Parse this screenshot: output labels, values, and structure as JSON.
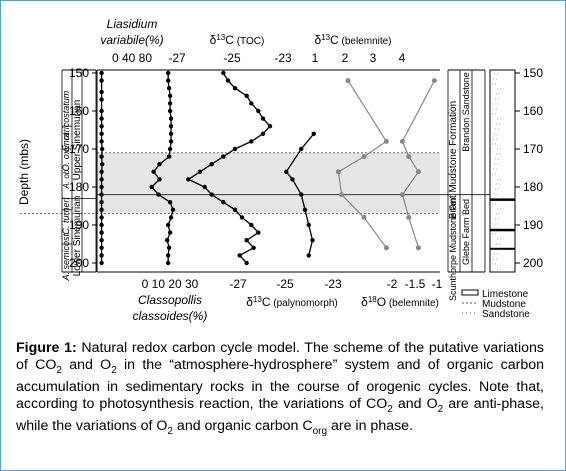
{
  "chart_data": [
    {
      "type": "line",
      "panel": "liasidium",
      "title": "Liasidium variabile(%)",
      "title_lines": [
        "Liasidium",
        "variabile(%)"
      ],
      "xlim": [
        0,
        100
      ],
      "xticks": [
        0,
        40,
        80
      ],
      "xticks_text": "0  40 80",
      "ylim": [
        150,
        200
      ],
      "y": [
        150,
        152,
        155,
        157,
        160,
        162,
        164,
        166,
        168,
        170,
        172,
        174,
        176,
        178,
        180,
        182,
        184,
        186,
        188,
        190,
        192,
        194,
        196,
        198,
        200
      ],
      "x": [
        1,
        1,
        1,
        1,
        1,
        1,
        1,
        1,
        1,
        2,
        1,
        2,
        1,
        1,
        1,
        1,
        1,
        1,
        1,
        1,
        1,
        1,
        1,
        1,
        1
      ]
    },
    {
      "type": "line",
      "panel": "classopollis",
      "title": "Classopollis classoides(%)",
      "title_lines": [
        "Classopollis",
        "classoides(%)"
      ],
      "xlim": [
        0,
        30
      ],
      "xticks": [
        0,
        10,
        20,
        30
      ],
      "xticks_text": "0 10 20 30",
      "ylim": [
        150,
        200
      ],
      "y": [
        150,
        152,
        154,
        156,
        158,
        160,
        162,
        164,
        166,
        168,
        170,
        172,
        174,
        176,
        178,
        180,
        182,
        184,
        186,
        188,
        190,
        192,
        194,
        196,
        198,
        200
      ],
      "x": [
        25,
        25,
        26,
        27,
        27,
        27,
        28,
        28,
        28,
        28,
        27,
        26,
        16,
        10,
        16,
        8,
        15,
        27,
        30,
        28,
        25,
        27,
        24,
        26,
        25,
        25
      ]
    },
    {
      "type": "line",
      "panel": "toc",
      "title": "δ13C (TOC)",
      "xlim": [
        -28,
        -22
      ],
      "xticks": [
        -27,
        -25,
        -23
      ],
      "ylim": [
        150,
        200
      ],
      "y": [
        150,
        152,
        154,
        156,
        158,
        160,
        162,
        164,
        166,
        168,
        170,
        172,
        174,
        176,
        178,
        180,
        182,
        184,
        186,
        188,
        190,
        192,
        194,
        196,
        198,
        200
      ],
      "x": [
        -25.5,
        -25.3,
        -25.0,
        -24.5,
        -24.3,
        -24.0,
        -23.8,
        -23.5,
        -23.8,
        -24.3,
        -25.0,
        -25.5,
        -26.0,
        -26.5,
        -27.0,
        -26.3,
        -26.0,
        -25.5,
        -25.0,
        -24.7,
        -24.3,
        -24.0,
        -24.5,
        -24.2,
        -24.8,
        -24.5
      ]
    },
    {
      "type": "line",
      "panel": "palynomorph",
      "title": "δ13C (palynomorph)",
      "xlim": [
        -28,
        -22
      ],
      "xticks": [
        -27,
        -25,
        -23
      ],
      "ylim": [
        150,
        200
      ],
      "y": [
        166,
        170,
        176,
        178,
        182,
        186,
        190,
        194,
        198
      ],
      "x": [
        -23.3,
        -24.3,
        -25.5,
        -25.0,
        -24.3,
        -24.0,
        -23.7,
        -23.4,
        -23.7
      ]
    },
    {
      "type": "line",
      "panel": "belemnite",
      "title": "δ13C (belemnite)",
      "title2": "δ18O (belemnite)",
      "xlim": [
        0.5,
        5.5
      ],
      "xticks": [
        1,
        2,
        3,
        4
      ],
      "xticks_bottom": [
        -2,
        -1.5,
        -1
      ],
      "ylim": [
        150,
        200
      ],
      "series": [
        {
          "name": "δ13C (belemnite)",
          "y": [
            152,
            168,
            172,
            176,
            182,
            188,
            196
          ],
          "x": [
            2.0,
            3.2,
            2.5,
            1.7,
            1.8,
            2.5,
            3.2
          ],
          "color": "#888888"
        },
        {
          "name": "δ18O (belemnite)",
          "y": [
            152,
            168,
            172,
            176,
            182,
            188,
            196
          ],
          "x": [
            4.7,
            3.7,
            3.9,
            4.2,
            3.7,
            3.9,
            4.2
          ],
          "color": "#888888"
        }
      ]
    }
  ],
  "fig": {
    "y_axis_label": "Depth (mbs)",
    "y_ticks": [
      "150",
      "160",
      "170",
      "180",
      "190",
      "200"
    ],
    "zones": [
      "E. raricostatum",
      "O. oxynot",
      "A. ob.",
      "C. turneri",
      "A. semicost."
    ],
    "substages": [
      "Upper Sinemurian",
      "Lower Sinemurian"
    ],
    "formations": [
      "Brant Mudstone Formation",
      "Brandon Sandstone",
      "Scunthorpe Mudstone Fm.",
      "Glebe Farm Bed"
    ],
    "legend": [
      "Limestone",
      "Mudstone",
      "Sandstone"
    ],
    "delta_labels": {
      "toc": [
        "δ",
        "13",
        "C",
        " (TOC)"
      ],
      "belemnite_c": [
        "δ",
        "13",
        "C",
        " (belemnite)"
      ],
      "palynomorph": [
        "δ",
        "13",
        "C",
        " (palynomorph)"
      ],
      "belemnite_o": [
        "δ",
        "18",
        "O",
        " (belemnite)"
      ]
    }
  },
  "caption": {
    "label": "Figure 1:",
    "segments": [
      {
        "t": " Natural redox carbon cycle model. The scheme of the putative variations of CO"
      },
      {
        "sub": "2"
      },
      {
        "t": " and O"
      },
      {
        "sub": "2"
      },
      {
        "t": " in the “atmosphere-hydrosphere” system and of organic carbon accumulation in sedimentary rocks in the course of orogenic cycles. Note that, according to photosynthesis reaction, the variations of CO"
      },
      {
        "sub": "2"
      },
      {
        "t": " and O"
      },
      {
        "sub": "2"
      },
      {
        "t": " are anti-phase, while the variations of O"
      },
      {
        "sub": "2"
      },
      {
        "t": " and organic carbon C"
      },
      {
        "sub": "org"
      },
      {
        "t": " are in phase."
      }
    ]
  }
}
